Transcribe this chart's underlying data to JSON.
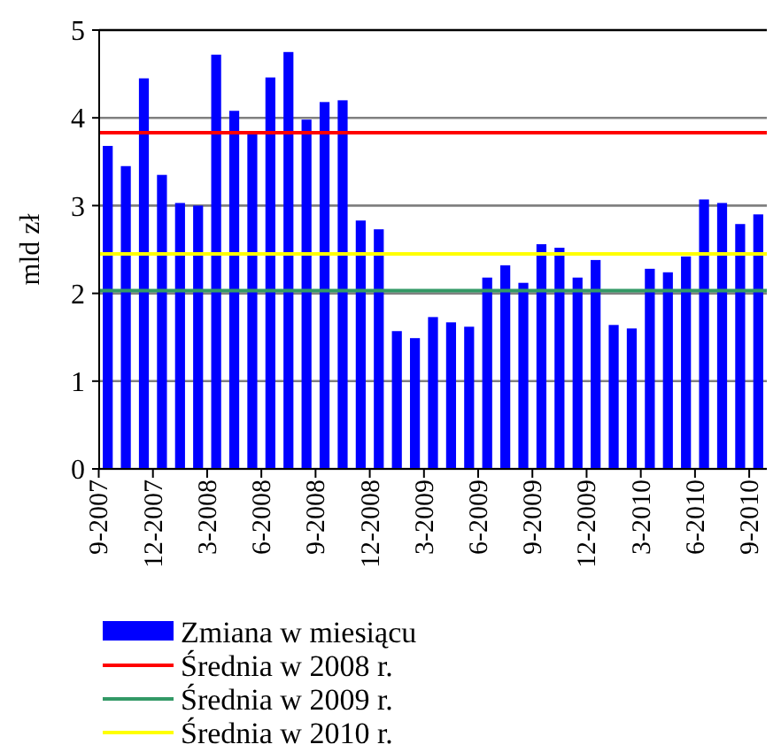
{
  "chart_data": {
    "type": "bar",
    "ylabel": "mld zł",
    "categories": [
      "9-2007",
      null,
      null,
      "12-2007",
      null,
      null,
      "3-2008",
      null,
      null,
      "6-2008",
      null,
      null,
      "9-2008",
      null,
      null,
      "12-2008",
      null,
      null,
      "3-2009",
      null,
      null,
      "6-2009",
      null,
      null,
      "9-2009",
      null,
      null,
      "12-2009",
      null,
      null,
      "3-2010",
      null,
      null,
      "6-2010",
      null,
      null,
      "9-2010"
    ],
    "series": [
      {
        "name": "Zmiana w miesiącu",
        "color": "#0000ff",
        "values": [
          3.68,
          3.45,
          4.45,
          3.35,
          3.03,
          3.0,
          4.72,
          4.08,
          3.82,
          4.46,
          4.75,
          3.98,
          4.18,
          4.2,
          2.83,
          2.73,
          1.57,
          1.49,
          1.73,
          1.67,
          1.62,
          2.18,
          2.32,
          2.12,
          2.56,
          2.52,
          2.18,
          2.38,
          1.64,
          1.6,
          2.28,
          2.24,
          2.42,
          3.07,
          3.03,
          2.79,
          2.9
        ]
      }
    ],
    "ylim": [
      0,
      5
    ],
    "yticks": [
      0,
      1,
      2,
      3,
      4,
      5
    ],
    "grid": "y",
    "legend": "bottom",
    "ref_lines": [
      {
        "axis": "y",
        "value": 3.83,
        "label": "Średnia w 2008 r.",
        "color": "#ff0000"
      },
      {
        "axis": "y",
        "value": 2.03,
        "label": "Średnia w 2009 r.",
        "color": "#339966"
      },
      {
        "axis": "y",
        "value": 2.45,
        "label": "Średnia w 2010 r.",
        "color": "#ffff00"
      }
    ]
  }
}
